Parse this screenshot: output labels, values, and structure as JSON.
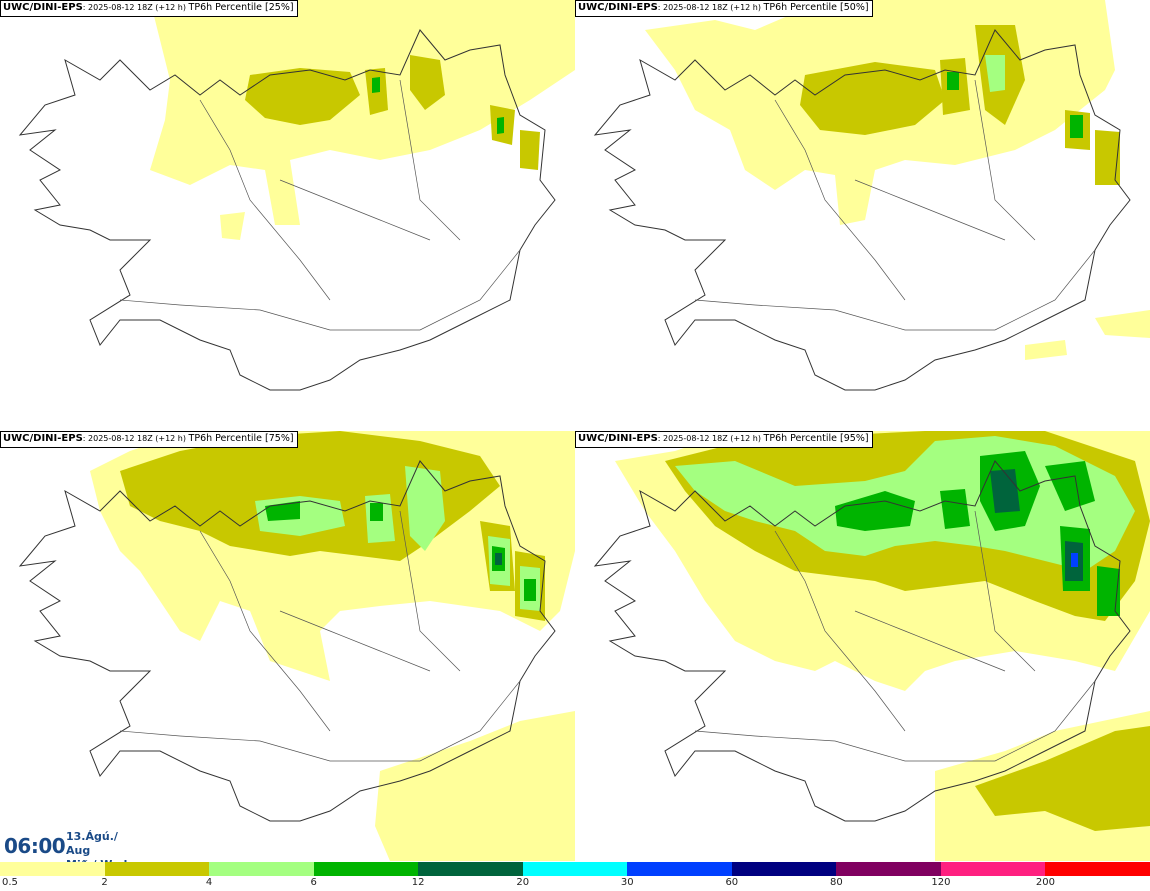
{
  "panels": [
    {
      "model": "UWC/DINI-EPS",
      "sep": ":",
      "date": " 2025-08-12 18Z (+12 h) ",
      "param": "TP6h Percentile [25%]"
    },
    {
      "model": "UWC/DINI-EPS",
      "sep": ":",
      "date": " 2025-08-12 18Z (+12 h) ",
      "param": "TP6h Percentile [50%]"
    },
    {
      "model": "UWC/DINI-EPS",
      "sep": ":",
      "date": " 2025-08-12 18Z (+12 h) ",
      "param": "TP6h Percentile [75%]"
    },
    {
      "model": "UWC/DINI-EPS",
      "sep": ":",
      "date": " 2025-08-12 18Z (+12 h) ",
      "param": "TP6h Percentile [95%]"
    }
  ],
  "valid_time": {
    "time": "06:00",
    "date_line": "13.Ágú./ Aug",
    "day_line": "Mið./ Wed"
  },
  "legend": {
    "colors": [
      "#ffff9a",
      "#c8c800",
      "#a4ff80",
      "#00b400",
      "#00643c",
      "#00ffff",
      "#0040ff",
      "#000080",
      "#800060",
      "#ff2080",
      "#ff0000"
    ],
    "ticks": [
      "0.5",
      "2",
      "4",
      "6",
      "12",
      "20",
      "30",
      "60",
      "80",
      "120",
      "200"
    ]
  },
  "colors": {
    "light": "#ffff9a",
    "olive": "#c8c800",
    "lightgreen": "#a4ff80",
    "green": "#00b400",
    "darkgreen": "#00643c",
    "blue": "#0040ff"
  }
}
